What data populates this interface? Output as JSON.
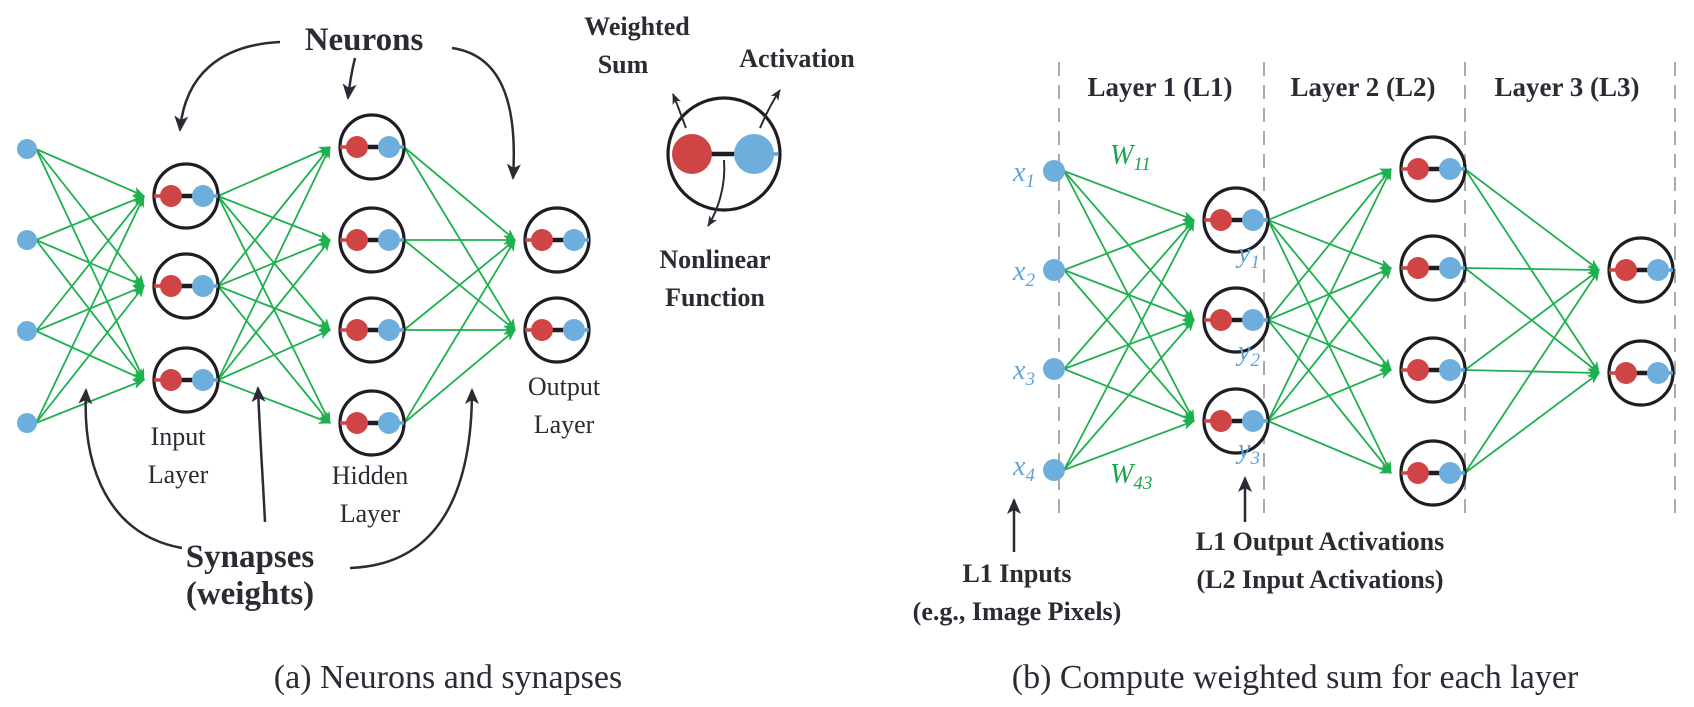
{
  "panel_a": {
    "label_neurons": "Neurons",
    "label_synapses_1": "Synapses",
    "label_synapses_2": "(weights)",
    "input_layer_1": "Input",
    "input_layer_2": "Layer",
    "hidden_layer_1": "Hidden",
    "hidden_layer_2": "Layer",
    "output_layer_1": "Output",
    "output_layer_2": "Layer",
    "inset_weighted_1": "Weighted",
    "inset_weighted_2": "Sum",
    "inset_activation": "Activation",
    "inset_nonlinear_1": "Nonlinear",
    "inset_nonlinear_2": "Function",
    "caption": "(a) Neurons and synapses"
  },
  "panel_b": {
    "layers": [
      "Layer 1 (L1)",
      "Layer 2 (L2)",
      "Layer 3 (L3)"
    ],
    "inputs": [
      {
        "base": "x",
        "sub": "1"
      },
      {
        "base": "x",
        "sub": "2"
      },
      {
        "base": "x",
        "sub": "3"
      },
      {
        "base": "x",
        "sub": "4"
      }
    ],
    "outputs": [
      {
        "base": "y",
        "sub": "1"
      },
      {
        "base": "y",
        "sub": "2"
      },
      {
        "base": "y",
        "sub": "3"
      }
    ],
    "weight_top": {
      "base": "W",
      "sub": "11"
    },
    "weight_bottom": {
      "base": "W",
      "sub": "43"
    },
    "l1_inputs_1": "L1 Inputs",
    "l1_inputs_2": "(e.g., Image Pixels)",
    "l1_outputs_1": "L1 Output Activations",
    "l1_outputs_2": "(L2 Input Activations)",
    "caption": "(b) Compute weighted sum for each layer"
  },
  "colors": {
    "synapse": "#1fb04f",
    "weighted_sum_node": "#cf4444",
    "activation_node": "#6eaedc",
    "ring": "#1d1d23"
  }
}
